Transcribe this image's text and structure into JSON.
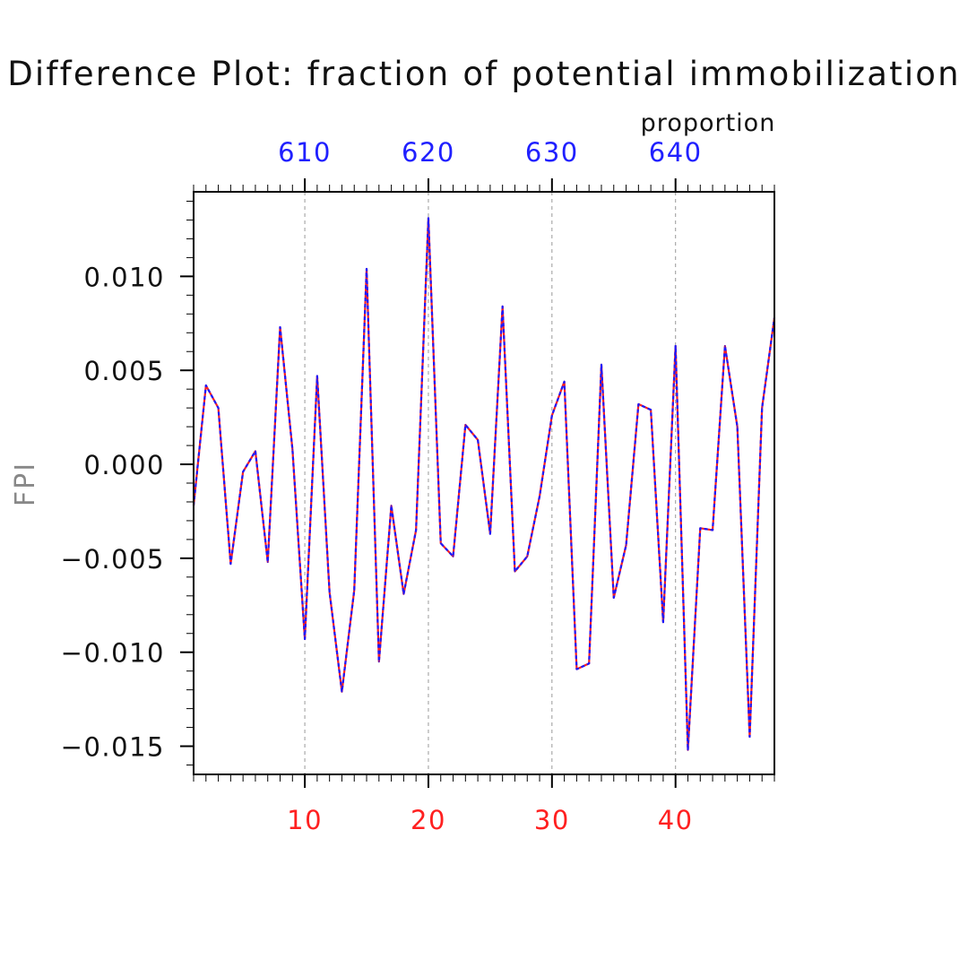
{
  "chart_data": {
    "type": "line",
    "title": "Difference Plot: fraction of potential immobilization",
    "ylabel": "FPI",
    "top_axis_label": "proportion",
    "xlim": [
      1,
      48
    ],
    "ylim": [
      -0.0165,
      0.0145
    ],
    "x_ticks": [
      10,
      20,
      30,
      40
    ],
    "x_tick_labels": [
      "10",
      "20",
      "30",
      "40"
    ],
    "top_ticks": [
      10,
      20,
      30,
      40
    ],
    "top_tick_labels": [
      "610",
      "620",
      "630",
      "640"
    ],
    "y_ticks": [
      0.01,
      0.005,
      0.0,
      -0.005,
      -0.01,
      -0.015
    ],
    "y_tick_labels": [
      "0.010",
      "0.005",
      "0.000",
      "−0.005",
      "−0.010",
      "−0.015"
    ],
    "grid": "vertical dashed at major x ticks",
    "colors": {
      "bottom_axis": "#ff2020",
      "top_axis": "#2020ff",
      "series_solid": "#ff2020",
      "series_dashed": "#1a1aff",
      "text": "#000000",
      "ylabel": "#888888"
    },
    "x": [
      1,
      2,
      3,
      4,
      5,
      6,
      7,
      8,
      9,
      10,
      11,
      12,
      13,
      14,
      15,
      16,
      17,
      18,
      19,
      20,
      21,
      22,
      23,
      24,
      25,
      26,
      27,
      28,
      29,
      30,
      31,
      32,
      33,
      34,
      35,
      36,
      37,
      38,
      39,
      40,
      41,
      42,
      43,
      44,
      45,
      46,
      47,
      48
    ],
    "series": [
      {
        "values": [
          -0.0022,
          0.0042,
          0.003,
          -0.0053,
          -0.0004,
          0.0007,
          -0.0052,
          0.0073,
          0.0008,
          -0.0093,
          0.0047,
          -0.0068,
          -0.0121,
          -0.0067,
          0.0104,
          -0.0105,
          -0.0022,
          -0.0069,
          -0.0035,
          0.0131,
          -0.0042,
          -0.0049,
          0.0021,
          0.0013,
          -0.0037,
          0.0084,
          -0.0057,
          -0.0049,
          -0.0017,
          0.0026,
          0.0044,
          -0.0109,
          -0.0106,
          0.0053,
          -0.0071,
          -0.0043,
          0.0032,
          0.0029,
          -0.0084,
          0.0063,
          -0.0152,
          -0.0034,
          -0.0035,
          0.0063,
          0.002,
          -0.0145,
          0.003,
          0.0078
        ]
      }
    ]
  }
}
